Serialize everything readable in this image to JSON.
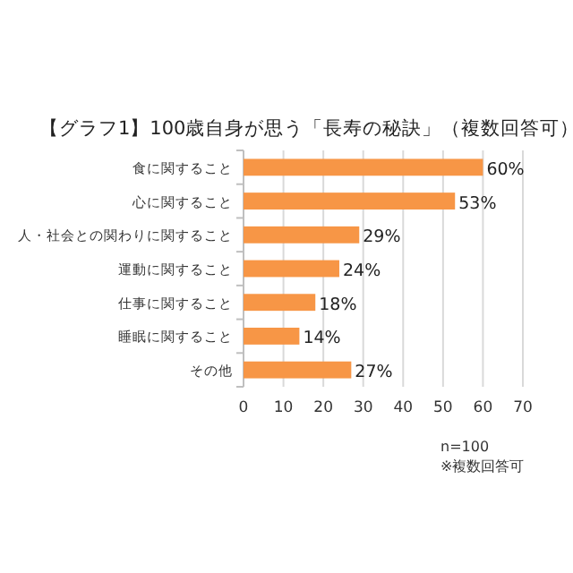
{
  "chart_data": {
    "type": "bar",
    "orientation": "horizontal",
    "title": "【グラフ1】100歳自身が思う「長寿の秘訣」（複数回答可）",
    "categories": [
      "食に関すること",
      "心に関すること",
      "人・社会との関わりに関すること",
      "運動に関すること",
      "仕事に関すること",
      "睡眠に関すること",
      "その他"
    ],
    "values": [
      60,
      53,
      29,
      24,
      18,
      14,
      27
    ],
    "value_labels": [
      "60%",
      "53%",
      "29%",
      "24%",
      "18%",
      "14%",
      "27%"
    ],
    "color": "#f79646",
    "xlim": [
      0,
      70
    ],
    "xticks": [
      0,
      10,
      20,
      30,
      40,
      50,
      60,
      70
    ],
    "grid": "x",
    "annotations": [
      "n=100",
      "※複数回答可"
    ]
  }
}
